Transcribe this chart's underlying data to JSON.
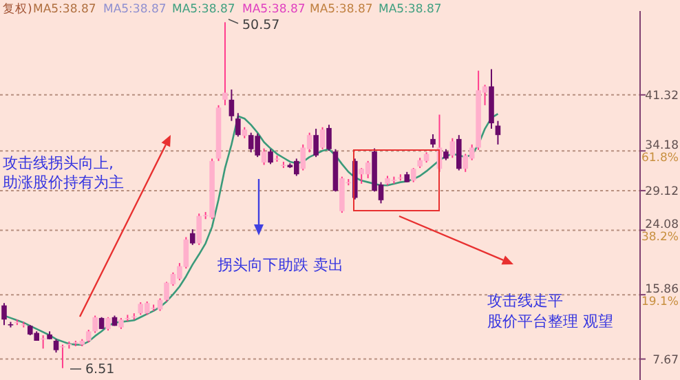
{
  "chart_data": {
    "type": "candlestick",
    "categories": [
      null,
      null,
      null,
      null,
      null,
      null,
      null,
      null,
      null,
      null,
      null,
      null,
      null,
      null,
      null,
      null,
      null,
      null,
      null,
      null,
      null,
      null,
      null,
      null,
      null,
      null,
      null,
      null,
      null,
      null,
      null,
      null,
      null,
      null,
      null,
      null,
      null,
      null,
      null,
      null,
      null,
      null,
      null,
      null,
      null,
      null,
      null,
      null,
      null,
      null,
      null,
      null,
      null,
      null,
      null,
      null,
      null,
      null,
      null,
      null,
      null,
      null,
      null,
      null,
      null,
      null,
      null,
      null,
      null,
      null,
      null,
      null,
      null,
      null,
      null,
      null,
      null
    ],
    "ohlc": [
      [
        14.5,
        14.8,
        12.0,
        12.7
      ],
      [
        12.1,
        12.4,
        11.7,
        12.0
      ],
      [
        12.4,
        12.7,
        12.0,
        12.4
      ],
      [
        12.0,
        12.4,
        11.7,
        12.1
      ],
      [
        11.9,
        12.0,
        10.7,
        10.8
      ],
      [
        11.0,
        11.2,
        10.0,
        10.0
      ],
      [
        10.2,
        10.7,
        9.0,
        10.3
      ],
      [
        10.8,
        11.2,
        10.2,
        10.2
      ],
      [
        10.0,
        10.2,
        8.5,
        8.8
      ],
      [
        9.2,
        9.5,
        6.51,
        9.3
      ],
      [
        9.5,
        9.9,
        9.0,
        9.6
      ],
      [
        9.7,
        10.0,
        9.3,
        9.8
      ],
      [
        9.5,
        10.2,
        9.3,
        10.0
      ],
      [
        10.0,
        11.4,
        9.8,
        11.2
      ],
      [
        11.2,
        13.2,
        11.0,
        13.0
      ],
      [
        12.9,
        13.0,
        11.5,
        11.5
      ],
      [
        11.5,
        13.0,
        11.3,
        12.9
      ],
      [
        13.0,
        13.2,
        11.9,
        11.9
      ],
      [
        11.7,
        12.9,
        11.5,
        12.7
      ],
      [
        12.8,
        13.3,
        12.5,
        12.9
      ],
      [
        13.0,
        13.5,
        12.7,
        13.1
      ],
      [
        13.5,
        14.9,
        13.3,
        14.7
      ],
      [
        13.5,
        15.0,
        13.3,
        14.8
      ],
      [
        14.2,
        14.6,
        13.8,
        14.2
      ],
      [
        14.0,
        15.4,
        13.8,
        15.2
      ],
      [
        15.2,
        17.5,
        15.0,
        17.4
      ],
      [
        17.2,
        18.7,
        17.0,
        18.5
      ],
      [
        17.9,
        19.9,
        17.7,
        19.5
      ],
      [
        19.4,
        23.2,
        19.2,
        22.9
      ],
      [
        23.7,
        24.2,
        22.2,
        22.4
      ],
      [
        22.4,
        26.2,
        22.2,
        25.9
      ],
      [
        25.9,
        26.4,
        25.5,
        26.0
      ],
      [
        25.7,
        33.2,
        25.5,
        32.9
      ],
      [
        33.2,
        40.0,
        32.9,
        39.7
      ],
      [
        40.7,
        50.57,
        40.0,
        41.6
      ],
      [
        40.7,
        42.0,
        38.0,
        38.6
      ],
      [
        38.3,
        39.0,
        36.0,
        36.2
      ],
      [
        36.1,
        37.2,
        35.8,
        36.9
      ],
      [
        36.2,
        36.5,
        34.0,
        34.4
      ],
      [
        36.1,
        36.4,
        33.4,
        33.6
      ],
      [
        32.7,
        34.5,
        32.4,
        34.1
      ],
      [
        34.1,
        34.4,
        32.5,
        32.7
      ],
      [
        33.2,
        33.6,
        32.8,
        33.2
      ],
      [
        32.4,
        32.8,
        32.0,
        32.4
      ],
      [
        32.4,
        32.6,
        32.0,
        32.1
      ],
      [
        32.9,
        33.2,
        31.0,
        31.2
      ],
      [
        31.9,
        35.0,
        31.7,
        34.6
      ],
      [
        34.4,
        36.5,
        34.0,
        36.2
      ],
      [
        36.2,
        37.0,
        33.4,
        33.6
      ],
      [
        34.6,
        37.2,
        34.4,
        36.9
      ],
      [
        37.1,
        37.5,
        34.2,
        34.4
      ],
      [
        34.1,
        34.4,
        29.0,
        29.1
      ],
      [
        26.5,
        30.9,
        26.3,
        30.7
      ],
      [
        30.2,
        30.6,
        29.8,
        30.2
      ],
      [
        32.9,
        33.2,
        28.0,
        28.2
      ],
      [
        31.2,
        32.0,
        30.0,
        31.9
      ],
      [
        31.2,
        32.9,
        30.7,
        32.7
      ],
      [
        34.1,
        34.5,
        29.0,
        29.1
      ],
      [
        29.9,
        30.2,
        27.5,
        27.9
      ],
      [
        30.0,
        31.0,
        29.8,
        30.7
      ],
      [
        30.4,
        30.9,
        30.0,
        30.5
      ],
      [
        30.8,
        31.2,
        30.4,
        30.8
      ],
      [
        31.2,
        31.5,
        30.2,
        30.2
      ],
      [
        30.4,
        32.0,
        30.2,
        31.9
      ],
      [
        32.2,
        33.3,
        32.0,
        33.0
      ],
      [
        32.9,
        34.0,
        32.7,
        33.8
      ],
      [
        35.7,
        36.3,
        34.6,
        35.0
      ],
      [
        31.9,
        38.8,
        31.5,
        34.6
      ],
      [
        34.1,
        34.4,
        33.0,
        33.2
      ],
      [
        33.6,
        35.8,
        33.3,
        35.4
      ],
      [
        35.7,
        36.2,
        31.7,
        31.9
      ],
      [
        31.9,
        33.8,
        31.5,
        33.6
      ],
      [
        33.2,
        35.0,
        33.0,
        34.6
      ],
      [
        34.6,
        44.4,
        34.3,
        41.9
      ],
      [
        41.6,
        42.6,
        40.0,
        42.4
      ],
      [
        42.4,
        44.6,
        37.0,
        37.7
      ],
      [
        37.4,
        38.0,
        35.0,
        36.2
      ]
    ],
    "series": [
      {
        "type": "line",
        "color": "#3a9a7a",
        "values": [
          13.2,
          12.9,
          12.6,
          12.3,
          11.9,
          11.5,
          11.1,
          10.7,
          10.2,
          9.9,
          9.6,
          9.5,
          9.5,
          9.9,
          10.6,
          11.2,
          11.9,
          12.3,
          12.4,
          12.5,
          12.6,
          13.0,
          13.4,
          13.8,
          14.3,
          15.0,
          15.9,
          16.9,
          18.2,
          19.7,
          21.0,
          22.4,
          24.5,
          28.0,
          32.0,
          35.0,
          38.6,
          38.3,
          37.5,
          36.5,
          35.3,
          34.5,
          33.8,
          33.3,
          32.8,
          32.6,
          32.8,
          33.4,
          33.8,
          34.2,
          34.4,
          33.6,
          32.5,
          31.5,
          30.8,
          30.4,
          30.2,
          30.0,
          29.8,
          29.8,
          30.0,
          30.2,
          30.3,
          30.6,
          31.0,
          31.6,
          32.3,
          33.0,
          33.5,
          33.8,
          33.6,
          33.4,
          33.7,
          35.0,
          37.0,
          38.4,
          38.9
        ]
      }
    ],
    "ylim": [
      5,
      52
    ],
    "yticks": [
      41.32,
      {
        "value": 34.18,
        "label": "34.18\n61.8%"
      },
      29.12,
      {
        "value": 24.08,
        "label": "24.08\n38.2%"
      },
      {
        "value": 15.86,
        "label": "15.86\n19.1%"
      },
      7.67
    ],
    "grid": "y",
    "annotations": [
      "复权)",
      "MA5:38.87",
      "MA5:38.87",
      "MA5:38.87",
      "MA5:38.87",
      "MA5:38.87",
      "MA5:38.87",
      "50.57",
      "6.51",
      "攻击线拐头向上,",
      "助涨股价持有为主",
      "拐头向下助跌  卖出",
      "攻击线走平",
      "股价平台整理  观望"
    ]
  }
}
